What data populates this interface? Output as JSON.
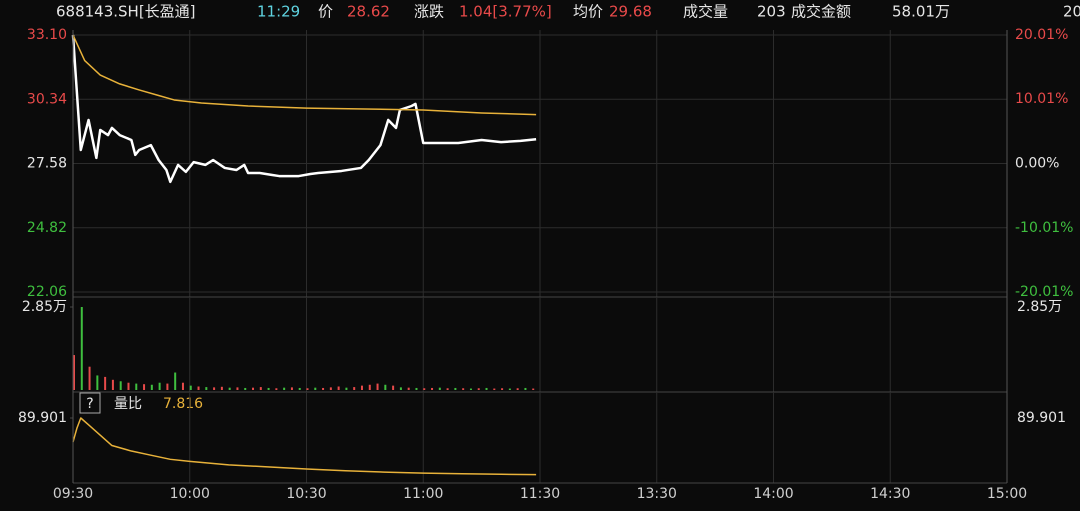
{
  "header": {
    "code": "688143.SH[长盈通]",
    "time": "11:29",
    "price_label": "价",
    "price": "28.62",
    "change_label": "涨跌",
    "change": "1.04[3.77%]",
    "avg_label": "均价",
    "avg": "29.68",
    "volume_label": "成交量",
    "volume": "203",
    "amount_label": "成交金额",
    "amount": "58.01万",
    "date_fragment": "20"
  },
  "chart_data": [
    {
      "type": "line",
      "xlim": [
        0,
        240
      ],
      "xticks": [
        {
          "value": 0,
          "label": "09:30"
        },
        {
          "value": 30,
          "label": "10:00"
        },
        {
          "value": 60,
          "label": "10:30"
        },
        {
          "value": 90,
          "label": "11:00"
        },
        {
          "value": 120,
          "label": "11:30"
        },
        {
          "value": 150,
          "label": "13:30"
        },
        {
          "value": 180,
          "label": "14:00"
        },
        {
          "value": 210,
          "label": "14:30"
        },
        {
          "value": 240,
          "label": "15:00"
        }
      ],
      "ylim": [
        22.06,
        33.1
      ],
      "yticks": [
        {
          "value": 33.1,
          "label": "33.10"
        },
        30.34,
        27.58,
        24.82,
        22.06
      ],
      "y2lim": [
        -20.01,
        20.01
      ],
      "y2ticks": [
        {
          "value": 20.01,
          "label": "20.01%"
        },
        {
          "value": 10.01,
          "label": "10.01%"
        },
        {
          "value": 0,
          "label": "0.00%"
        },
        {
          "value": -10.01,
          "label": "-10.01%"
        },
        {
          "value": -20.01,
          "label": "-20.01%"
        }
      ],
      "series": [
        {
          "color": "#ffffff",
          "x": [
            0,
            2,
            4,
            6,
            7,
            9,
            10,
            12,
            15,
            16,
            17,
            20,
            22,
            24,
            25,
            27,
            29,
            31,
            34,
            36,
            39,
            42,
            44,
            45,
            48,
            51,
            53,
            58,
            61,
            63,
            69,
            74,
            76,
            79,
            81,
            83,
            84,
            87,
            88,
            90,
            94,
            99,
            105,
            110,
            115,
            119
          ],
          "values": [
            33.1,
            28.16,
            29.45,
            27.82,
            29.02,
            28.8,
            29.11,
            28.8,
            28.59,
            27.95,
            28.16,
            28.37,
            27.73,
            27.3,
            26.79,
            27.52,
            27.22,
            27.64,
            27.52,
            27.73,
            27.39,
            27.3,
            27.52,
            27.17,
            27.17,
            27.09,
            27.04,
            27.04,
            27.13,
            27.17,
            27.26,
            27.39,
            27.73,
            28.37,
            29.45,
            29.11,
            29.88,
            30.05,
            30.14,
            28.46,
            28.46,
            28.46,
            28.59,
            28.5,
            28.55,
            28.62
          ]
        },
        {
          "color": "#e8b23a",
          "x": [
            0,
            3,
            7,
            12,
            17,
            22,
            26,
            33,
            45,
            60,
            75,
            90,
            105,
            119
          ],
          "values": [
            33.1,
            32.0,
            31.38,
            31.0,
            30.74,
            30.5,
            30.31,
            30.18,
            30.05,
            29.96,
            29.92,
            29.88,
            29.75,
            29.68
          ]
        }
      ]
    },
    {
      "type": "bar",
      "xlim": [
        0,
        240
      ],
      "xticks": [
        {
          "value": 0,
          "label": "09:30"
        },
        {
          "value": 30,
          "label": "10:00"
        },
        {
          "value": 60,
          "label": "10:30"
        },
        {
          "value": 90,
          "label": "11:00"
        },
        {
          "value": 120,
          "label": "11:30"
        },
        {
          "value": 150,
          "label": "13:30"
        },
        {
          "value": 180,
          "label": "14:00"
        },
        {
          "value": 210,
          "label": "14:30"
        },
        {
          "value": 240,
          "label": "15:00"
        }
      ],
      "ylim": [
        0,
        28500
      ],
      "yticks": [
        {
          "value": 28500,
          "label": "2.85万"
        }
      ],
      "x": [
        0,
        2,
        4,
        6,
        8,
        10,
        12,
        14,
        16,
        18,
        20,
        22,
        24,
        26,
        28,
        30,
        32,
        34,
        36,
        38,
        40,
        42,
        44,
        46,
        48,
        50,
        52,
        54,
        56,
        58,
        60,
        62,
        64,
        66,
        68,
        70,
        72,
        74,
        76,
        78,
        80,
        82,
        84,
        86,
        88,
        90,
        92,
        94,
        96,
        98,
        100,
        102,
        104,
        106,
        108,
        110,
        112,
        114,
        116,
        118
      ],
      "values": [
        12000,
        28500,
        8000,
        5000,
        4500,
        3500,
        3000,
        2500,
        2200,
        2000,
        1800,
        2500,
        2200,
        6000,
        2500,
        1500,
        1200,
        1000,
        900,
        1100,
        800,
        900,
        700,
        800,
        1000,
        700,
        600,
        800,
        900,
        700,
        600,
        800,
        700,
        900,
        1200,
        800,
        1000,
        1500,
        1800,
        2200,
        1800,
        1500,
        900,
        800,
        700,
        600,
        700,
        800,
        600,
        700,
        600,
        500,
        600,
        700,
        500,
        600,
        500,
        600,
        700,
        500
      ],
      "colors": [
        "#e84a4a",
        "#3fbf3f",
        "#e84a4a",
        "#3fbf3f",
        "#e84a4a",
        "#e84a4a",
        "#3fbf3f",
        "#e84a4a",
        "#3fbf3f",
        "#e84a4a",
        "#3fbf3f",
        "#3fbf3f",
        "#e84a4a",
        "#3fbf3f",
        "#e84a4a",
        "#3fbf3f",
        "#e84a4a",
        "#3fbf3f",
        "#e84a4a",
        "#e84a4a",
        "#3fbf3f",
        "#e84a4a",
        "#3fbf3f",
        "#e84a4a",
        "#e84a4a",
        "#3fbf3f",
        "#e84a4a",
        "#3fbf3f",
        "#e84a4a",
        "#3fbf3f",
        "#e84a4a",
        "#3fbf3f",
        "#e84a4a",
        "#e84a4a",
        "#e84a4a",
        "#3fbf3f",
        "#e84a4a",
        "#e84a4a",
        "#e84a4a",
        "#e84a4a",
        "#3fbf3f",
        "#e84a4a",
        "#3fbf3f",
        "#e84a4a",
        "#3fbf3f",
        "#e84a4a",
        "#e84a4a",
        "#3fbf3f",
        "#e84a4a",
        "#3fbf3f",
        "#e84a4a",
        "#3fbf3f",
        "#e84a4a",
        "#3fbf3f",
        "#e84a4a",
        "#e84a4a",
        "#3fbf3f",
        "#e84a4a",
        "#3fbf3f",
        "#e84a4a"
      ]
    },
    {
      "type": "line",
      "help_icon": "?",
      "label": "量比",
      "current": 7.816,
      "xlim": [
        0,
        240
      ],
      "xticks": [
        {
          "value": 0,
          "label": "09:30"
        },
        {
          "value": 30,
          "label": "10:00"
        },
        {
          "value": 60,
          "label": "10:30"
        },
        {
          "value": 90,
          "label": "11:00"
        },
        {
          "value": 120,
          "label": "11:30"
        },
        {
          "value": 150,
          "label": "13:30"
        },
        {
          "value": 180,
          "label": "14:00"
        },
        {
          "value": 210,
          "label": "14:30"
        },
        {
          "value": 240,
          "label": "15:00"
        }
      ],
      "ylim": [
        0,
        89.901
      ],
      "yticks": [
        89.901
      ],
      "series": [
        {
          "color": "#e8b23a",
          "x": [
            0,
            1,
            2,
            4,
            7,
            10,
            15,
            20,
            25,
            30,
            40,
            50,
            60,
            70,
            80,
            90,
            100,
            110,
            119
          ],
          "values": [
            55,
            75,
            89.901,
            80,
            65,
            50,
            42,
            36,
            30,
            27,
            22,
            19,
            16,
            13.5,
            11.5,
            10,
            9,
            8.3,
            7.816
          ]
        }
      ]
    }
  ]
}
